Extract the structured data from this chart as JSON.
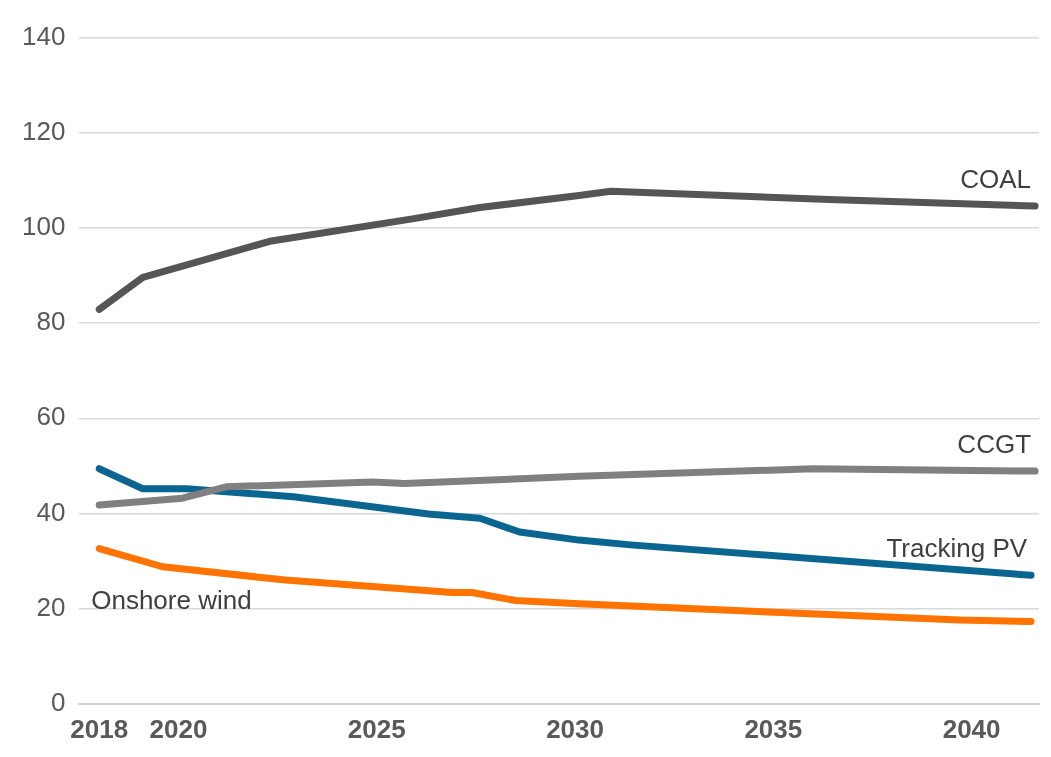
{
  "chart_data": {
    "type": "line",
    "xlim": [
      2017.5,
      2041.7
    ],
    "xticks": [
      2018,
      2020,
      2025,
      2030,
      2035,
      2040
    ],
    "ylim": [
      0,
      140
    ],
    "yticks": [
      0,
      20,
      40,
      60,
      80,
      100,
      120,
      140
    ],
    "grid": "y",
    "legend": false,
    "marker": "none",
    "line_style": "solid",
    "series": [
      {
        "name": "COAL",
        "color": "#555555",
        "x": [
          2018,
          2019.1,
          2022.3,
          2025.9,
          2027.6,
          2030.1,
          2030.9,
          2036.4,
          2041.6
        ],
        "values": [
          82.9,
          89.6,
          97.2,
          101.9,
          104.3,
          106.8,
          107.7,
          106,
          104.6
        ]
      },
      {
        "name": "CCGT",
        "color": "#808080",
        "x": [
          2018,
          2020.1,
          2021.2,
          2024.9,
          2025.7,
          2030.1,
          2036,
          2041.6
        ],
        "values": [
          41.8,
          43.2,
          45.6,
          46.6,
          46.3,
          47.8,
          49.4,
          48.9
        ]
      },
      {
        "name": "Tracking PV",
        "color": "#0a6690",
        "x": [
          2018,
          2019.1,
          2020.2,
          2022.9,
          2026.3,
          2027.6,
          2028.6,
          2030.1,
          2031.4,
          2041.5
        ],
        "values": [
          49.4,
          45.2,
          45.2,
          43.5,
          39.9,
          39,
          36.1,
          34.4,
          33.4,
          27
        ]
      },
      {
        "name": "Onshore wind",
        "color": "#ff7300",
        "x": [
          2018,
          2019.6,
          2022.7,
          2026.9,
          2027.4,
          2028.5,
          2030.1,
          2039.7,
          2041.5
        ],
        "values": [
          32.6,
          28.8,
          26,
          23.4,
          23.4,
          21.7,
          21,
          17.6,
          17.3
        ]
      }
    ]
  }
}
